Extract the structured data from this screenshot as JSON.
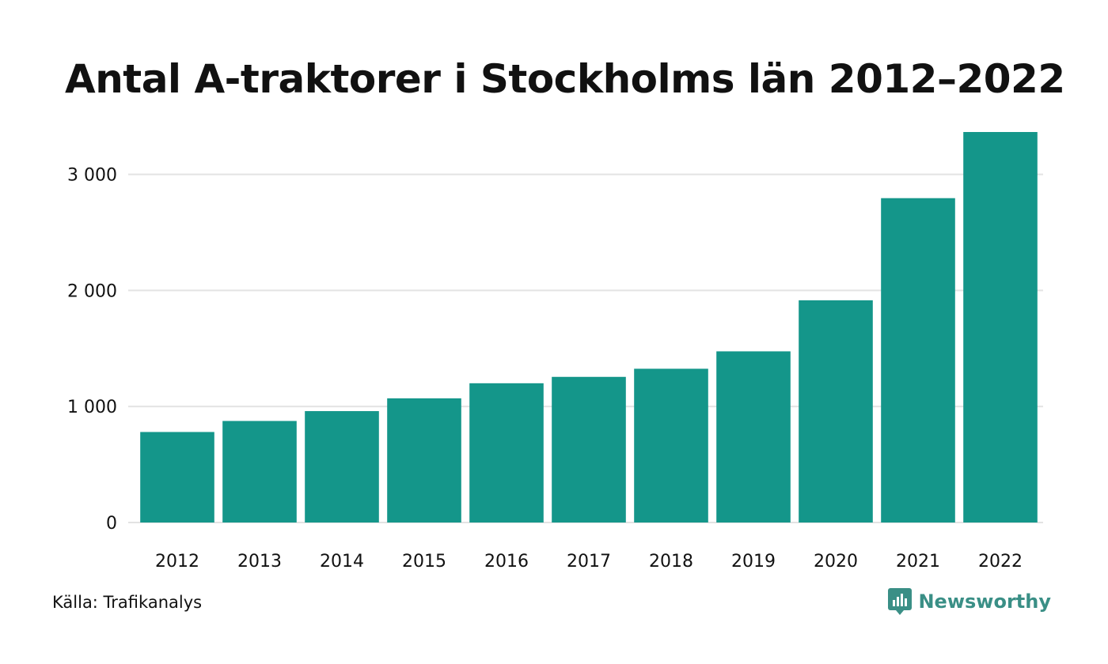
{
  "title": "Antal A-traktorer i Stockholms län 2012–2022",
  "source": "Källa: Trafikanalys",
  "brand": {
    "name": "Newsworthy",
    "color": "#3a8f86",
    "icon": "newsworthy-logo-icon"
  },
  "colors": {
    "bar": "#14968a",
    "grid": "#e3e3e3",
    "text": "#111111"
  },
  "chart_data": {
    "type": "bar",
    "categories": [
      "2012",
      "2013",
      "2014",
      "2015",
      "2016",
      "2017",
      "2018",
      "2019",
      "2020",
      "2021",
      "2022"
    ],
    "values": [
      780,
      875,
      960,
      1070,
      1200,
      1255,
      1325,
      1475,
      1915,
      2795,
      3365
    ],
    "ylim": [
      0,
      3365
    ],
    "yticks": [
      0,
      1000,
      2000,
      3000
    ],
    "ytick_labels": [
      "0",
      "1 000",
      "2 000",
      "3 000"
    ],
    "grid": true,
    "legend": "none",
    "xlabel": "",
    "ylabel": ""
  }
}
